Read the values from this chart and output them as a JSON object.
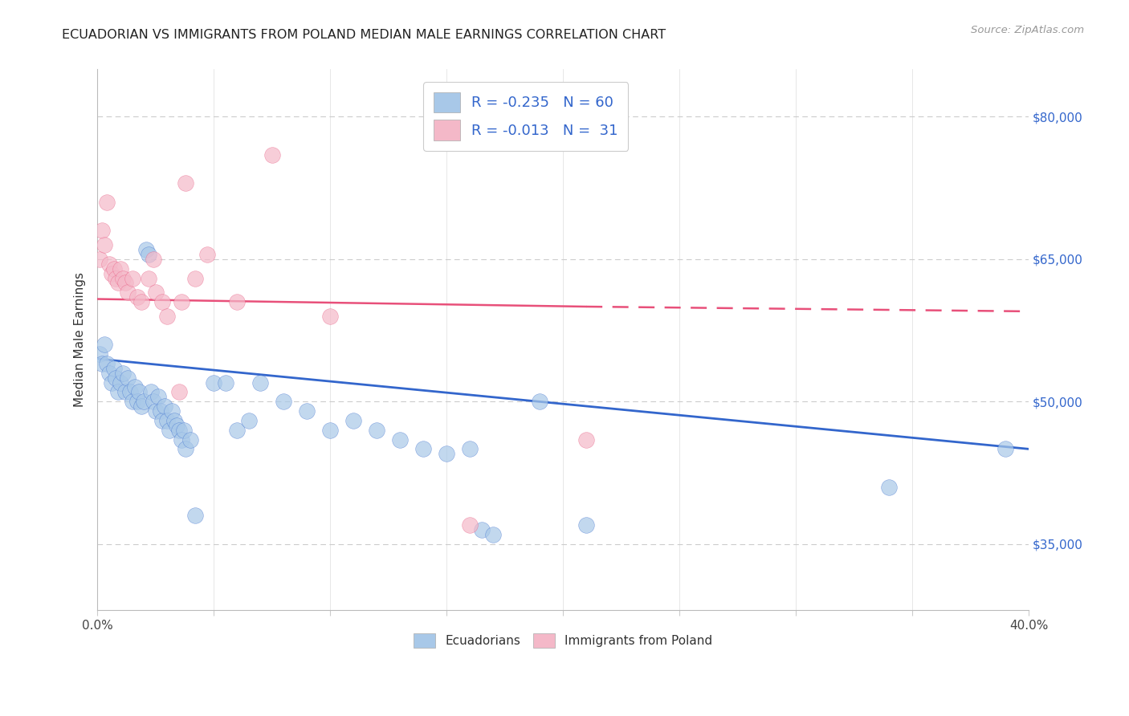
{
  "title": "ECUADORIAN VS IMMIGRANTS FROM POLAND MEDIAN MALE EARNINGS CORRELATION CHART",
  "source": "Source: ZipAtlas.com",
  "ylabel": "Median Male Earnings",
  "yticks": [
    35000,
    50000,
    65000,
    80000
  ],
  "ytick_labels": [
    "$35,000",
    "$50,000",
    "$65,000",
    "$80,000"
  ],
  "xlim": [
    0.0,
    0.4
  ],
  "ylim": [
    28000,
    85000
  ],
  "legend_bottom": [
    "Ecuadorians",
    "Immigrants from Poland"
  ],
  "blue_scatter_color": "#a8c8e8",
  "pink_scatter_color": "#f4b8c8",
  "blue_line_color": "#3366cc",
  "pink_line_color": "#e8507a",
  "blue_R": -0.235,
  "pink_R": -0.013,
  "blue_N": 60,
  "pink_N": 31,
  "blue_points": [
    [
      0.001,
      55000
    ],
    [
      0.002,
      54000
    ],
    [
      0.003,
      56000
    ],
    [
      0.004,
      54000
    ],
    [
      0.005,
      53000
    ],
    [
      0.006,
      52000
    ],
    [
      0.007,
      53500
    ],
    [
      0.008,
      52500
    ],
    [
      0.009,
      51000
    ],
    [
      0.01,
      52000
    ],
    [
      0.011,
      53000
    ],
    [
      0.012,
      51000
    ],
    [
      0.013,
      52500
    ],
    [
      0.014,
      51000
    ],
    [
      0.015,
      50000
    ],
    [
      0.016,
      51500
    ],
    [
      0.017,
      50000
    ],
    [
      0.018,
      51000
    ],
    [
      0.019,
      49500
    ],
    [
      0.02,
      50000
    ],
    [
      0.021,
      66000
    ],
    [
      0.022,
      65500
    ],
    [
      0.023,
      51000
    ],
    [
      0.024,
      50000
    ],
    [
      0.025,
      49000
    ],
    [
      0.026,
      50500
    ],
    [
      0.027,
      49000
    ],
    [
      0.028,
      48000
    ],
    [
      0.029,
      49500
    ],
    [
      0.03,
      48000
    ],
    [
      0.031,
      47000
    ],
    [
      0.032,
      49000
    ],
    [
      0.033,
      48000
    ],
    [
      0.034,
      47500
    ],
    [
      0.035,
      47000
    ],
    [
      0.036,
      46000
    ],
    [
      0.037,
      47000
    ],
    [
      0.038,
      45000
    ],
    [
      0.04,
      46000
    ],
    [
      0.042,
      38000
    ],
    [
      0.05,
      52000
    ],
    [
      0.055,
      52000
    ],
    [
      0.06,
      47000
    ],
    [
      0.065,
      48000
    ],
    [
      0.07,
      52000
    ],
    [
      0.08,
      50000
    ],
    [
      0.09,
      49000
    ],
    [
      0.1,
      47000
    ],
    [
      0.11,
      48000
    ],
    [
      0.12,
      47000
    ],
    [
      0.13,
      46000
    ],
    [
      0.14,
      45000
    ],
    [
      0.15,
      44500
    ],
    [
      0.16,
      45000
    ],
    [
      0.165,
      36500
    ],
    [
      0.17,
      36000
    ],
    [
      0.19,
      50000
    ],
    [
      0.21,
      37000
    ],
    [
      0.34,
      41000
    ],
    [
      0.39,
      45000
    ]
  ],
  "pink_points": [
    [
      0.001,
      65000
    ],
    [
      0.002,
      68000
    ],
    [
      0.003,
      66500
    ],
    [
      0.004,
      71000
    ],
    [
      0.005,
      64500
    ],
    [
      0.006,
      63500
    ],
    [
      0.007,
      64000
    ],
    [
      0.008,
      63000
    ],
    [
      0.009,
      62500
    ],
    [
      0.01,
      64000
    ],
    [
      0.011,
      63000
    ],
    [
      0.012,
      62500
    ],
    [
      0.013,
      61500
    ],
    [
      0.015,
      63000
    ],
    [
      0.017,
      61000
    ],
    [
      0.019,
      60500
    ],
    [
      0.022,
      63000
    ],
    [
      0.024,
      65000
    ],
    [
      0.025,
      61500
    ],
    [
      0.028,
      60500
    ],
    [
      0.03,
      59000
    ],
    [
      0.035,
      51000
    ],
    [
      0.036,
      60500
    ],
    [
      0.038,
      73000
    ],
    [
      0.042,
      63000
    ],
    [
      0.047,
      65500
    ],
    [
      0.06,
      60500
    ],
    [
      0.075,
      76000
    ],
    [
      0.1,
      59000
    ],
    [
      0.16,
      37000
    ],
    [
      0.21,
      46000
    ]
  ]
}
